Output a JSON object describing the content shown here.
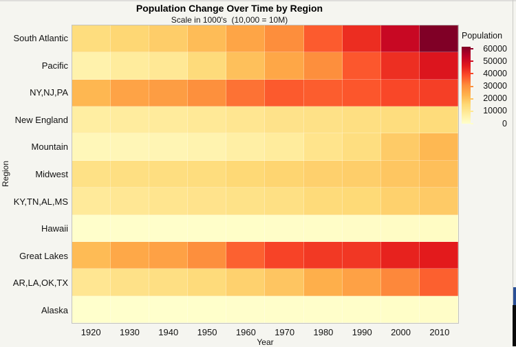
{
  "chart_data": {
    "type": "heatmap",
    "title": "Population Change Over Time by Region",
    "subtitle": "Scale in 1000's  (10,000 = 10M)",
    "xlabel": "Year",
    "ylabel": "Region",
    "x": [
      "1920",
      "1930",
      "1940",
      "1950",
      "1960",
      "1970",
      "1980",
      "1990",
      "2000",
      "2010"
    ],
    "rows": [
      {
        "region": "South Atlantic",
        "values": [
          13990,
          15794,
          17823,
          21182,
          25972,
          30671,
          36959,
          43567,
          51769,
          61774
        ]
      },
      {
        "region": "Pacific",
        "values": [
          5567,
          8194,
          9733,
          14486,
          20339,
          25454,
          30433,
          37469,
          43187,
          47810
        ]
      },
      {
        "region": "NY,NJ,PA",
        "values": [
          22261,
          26261,
          27539,
          30164,
          34168,
          37199,
          36787,
          37602,
          39671,
          40872
        ]
      },
      {
        "region": "New England",
        "values": [
          7401,
          8166,
          8437,
          9314,
          10509,
          11842,
          12348,
          13207,
          13923,
          14445
        ]
      },
      {
        "region": "Mountain",
        "values": [
          3336,
          3702,
          4150,
          5075,
          6855,
          8282,
          11373,
          13659,
          18172,
          22066
        ]
      },
      {
        "region": "Midwest",
        "values": [
          12544,
          13297,
          13517,
          14061,
          15394,
          16319,
          17183,
          17660,
          19237,
          20505
        ]
      },
      {
        "region": "KY,TN,AL,MS",
        "values": [
          8893,
          9887,
          10778,
          11477,
          12050,
          12803,
          14666,
          15176,
          17023,
          18432
        ]
      },
      {
        "region": "Hawaii",
        "values": [
          256,
          368,
          423,
          500,
          633,
          770,
          965,
          1108,
          1212,
          1360
        ]
      },
      {
        "region": "Great Lakes",
        "values": [
          21476,
          25297,
          26626,
          30399,
          36225,
          40252,
          41682,
          42009,
          45155,
          46421
        ]
      },
      {
        "region": "AR,LA,OK,TX",
        "values": [
          10242,
          12177,
          13065,
          14538,
          16951,
          19321,
          23747,
          26703,
          31445,
          36346
        ]
      },
      {
        "region": "Alaska",
        "values": [
          55,
          59,
          73,
          129,
          226,
          300,
          402,
          550,
          627,
          710
        ]
      }
    ],
    "vmin": 0,
    "vmax": 61775,
    "grid": "off",
    "legend_position": "right",
    "colorscale": [
      {
        "t": 0.0,
        "color": "#ffffcc"
      },
      {
        "t": 0.125,
        "color": "#ffeda0"
      },
      {
        "t": 0.25,
        "color": "#fed976"
      },
      {
        "t": 0.375,
        "color": "#feb24c"
      },
      {
        "t": 0.5,
        "color": "#fd8d3c"
      },
      {
        "t": 0.625,
        "color": "#fc4e2a"
      },
      {
        "t": 0.75,
        "color": "#e31a1c"
      },
      {
        "t": 0.875,
        "color": "#bd0026"
      },
      {
        "t": 1.0,
        "color": "#800026"
      }
    ],
    "legend": {
      "title": "Population",
      "ticks": [
        60000,
        50000,
        40000,
        30000,
        20000,
        10000,
        0
      ]
    }
  }
}
